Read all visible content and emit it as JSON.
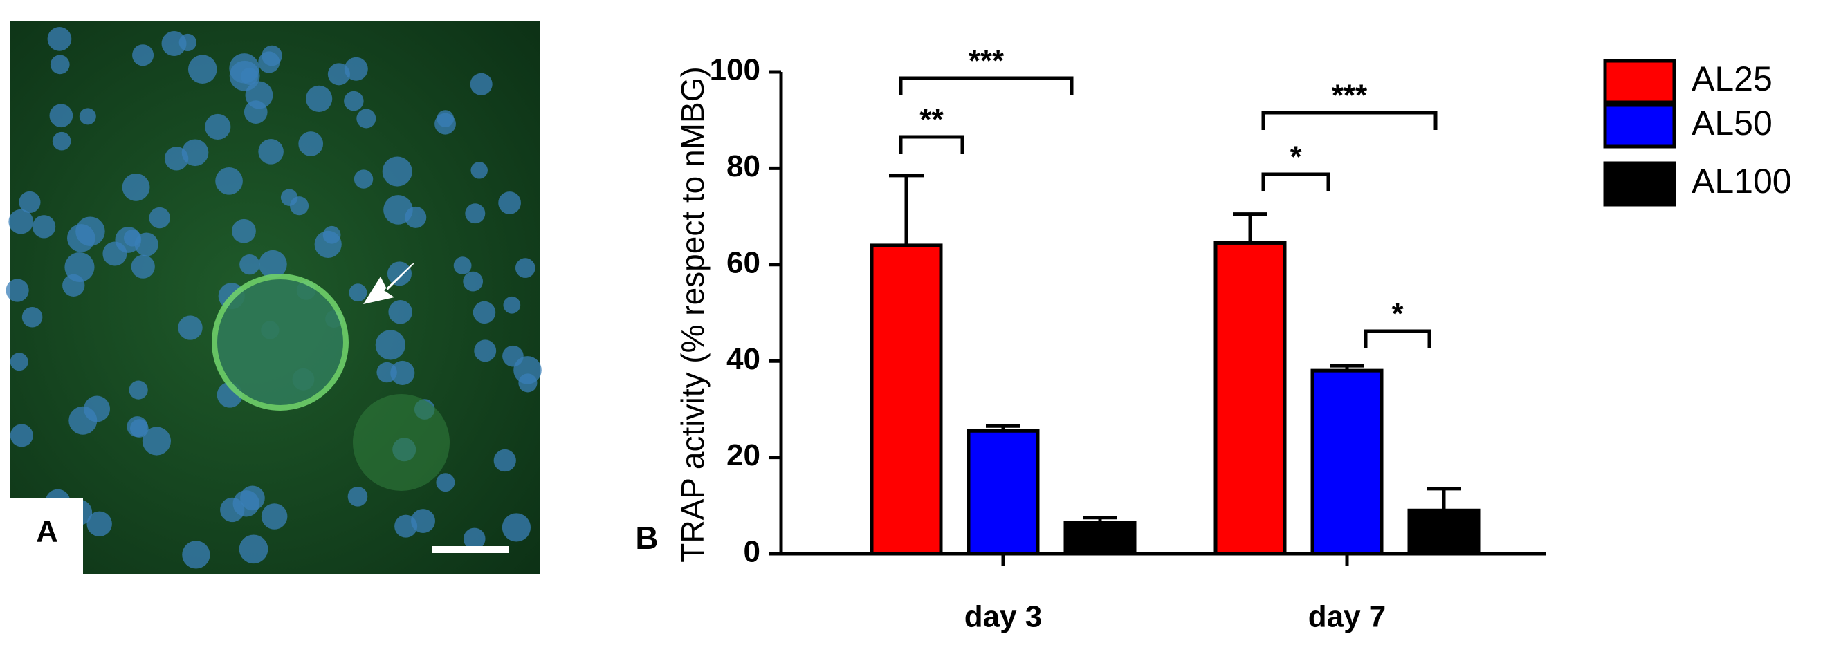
{
  "panel_a": {
    "label": "A"
  },
  "chart_data": {
    "type": "bar",
    "panel_label": "B",
    "y_label": "TRAP activity (% respect to nMBG)",
    "categories": [
      "day 3",
      "day 7"
    ],
    "series": [
      {
        "name": "AL25",
        "color": "#ff0000",
        "values": [
          64,
          64.5
        ],
        "errors": [
          14.5,
          6
        ]
      },
      {
        "name": "AL50",
        "color": "#0000ff",
        "values": [
          25.5,
          38
        ],
        "errors": [
          1,
          1
        ]
      },
      {
        "name": "AL100",
        "color": "#000000",
        "values": [
          6.5,
          9
        ],
        "errors": [
          1,
          4.5
        ]
      }
    ],
    "ylim": [
      0,
      100
    ],
    "yticks": [
      0,
      20,
      40,
      60,
      80,
      100
    ],
    "significance": [
      "***",
      "**",
      "***",
      "*",
      "*"
    ],
    "legend": "right"
  }
}
